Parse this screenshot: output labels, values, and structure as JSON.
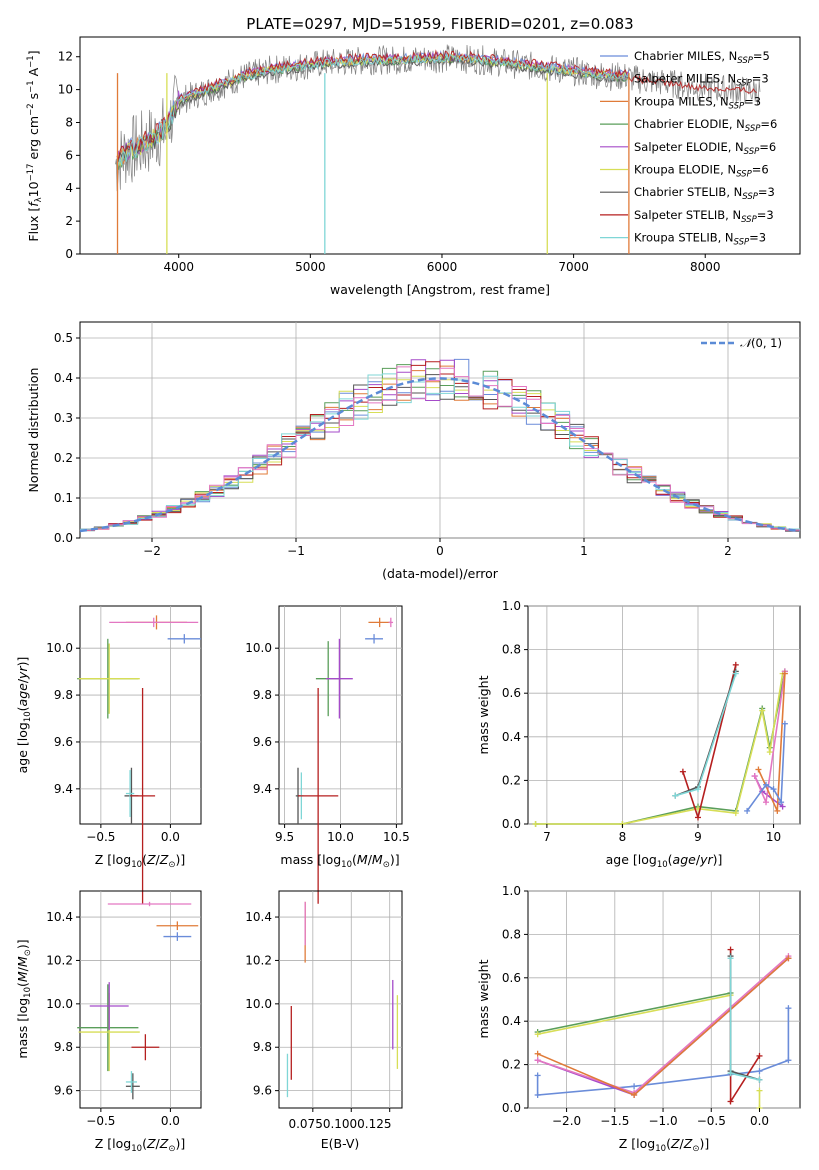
{
  "chart_data": [
    {
      "id": "spectrum",
      "type": "line",
      "title": "PLATE=0297, MJD=51959, FIBERID=0201, z=0.083",
      "xlabel": "wavelength [Angstrom, rest frame]",
      "ylabel": "Flux [f_λ 10^-17 erg cm^-2 s^-1 A^-1]",
      "xlim": [
        3250,
        8720
      ],
      "ylim": [
        0,
        13.2
      ],
      "xticks": [
        4000,
        5000,
        6000,
        7000,
        8000
      ],
      "yticks": [
        0,
        2,
        4,
        6,
        8,
        10,
        12
      ],
      "legend_position": "right",
      "series": [
        {
          "name": "Chabrier MILES, N_SSP=5",
          "color": "#6a8cd9"
        },
        {
          "name": "Salpeter MILES, N_SSP=3",
          "color": "#9a9a9a"
        },
        {
          "name": "Kroupa MILES, N_SSP=3",
          "color": "#e07b39"
        },
        {
          "name": "Chabrier ELODIE, N_SSP=6",
          "color": "#5a9e5a"
        },
        {
          "name": "Salpeter ELODIE, N_SSP=6",
          "color": "#a54bc9"
        },
        {
          "name": "Kroupa ELODIE, N_SSP=6",
          "color": "#d7de57"
        },
        {
          "name": "Chabrier STELIB, N_SSP=3",
          "color": "#555555"
        },
        {
          "name": "Salpeter STELIB, N_SSP=3",
          "color": "#b51f1f"
        },
        {
          "name": "Kroupa STELIB, N_SSP=3",
          "color": "#7fd6d6"
        }
      ],
      "curve_points": {
        "x": [
          3530,
          3600,
          3700,
          3800,
          3900,
          4000,
          4100,
          4200,
          4300,
          4400,
          4500,
          4700,
          4900,
          5100,
          5300,
          5500,
          5700,
          5900,
          6100,
          6300,
          6500,
          6700,
          6900,
          7100,
          7300,
          7420
        ],
        "y": [
          5.5,
          6.2,
          6.5,
          7.0,
          7.6,
          9.3,
          9.6,
          9.9,
          10.2,
          10.5,
          10.8,
          11.2,
          11.4,
          11.6,
          11.7,
          11.8,
          11.8,
          11.9,
          11.9,
          11.8,
          11.6,
          11.4,
          11.2,
          11.0,
          10.8,
          10.8
        ]
      },
      "red_tail": {
        "x": [
          7420,
          7600,
          7800,
          8000,
          8200,
          8400
        ],
        "y": [
          10.7,
          10.5,
          10.3,
          10.1,
          10.0,
          9.9
        ]
      }
    },
    {
      "id": "residuals",
      "type": "line",
      "xlabel": "(data-model)/error",
      "ylabel": "Normed distribution",
      "xlim": [
        -2.5,
        2.5
      ],
      "ylim": [
        0,
        0.54
      ],
      "xticks": [
        -2,
        -1,
        0,
        1,
        2
      ],
      "xtick_labels": [
        "−2",
        "−1",
        "0",
        "1",
        "2"
      ],
      "yticks": [
        0,
        0.1,
        0.2,
        0.3,
        0.4,
        0.5
      ],
      "ytick_labels": [
        "0.0",
        "0.1",
        "0.2",
        "0.3",
        "0.4",
        "0.5"
      ],
      "legend": "N(0,1)",
      "legend_position": "top-right",
      "bin_width": 0.1
    },
    {
      "id": "age_vs_Z",
      "type": "scatter",
      "xlabel": "Z [log10(Z/Z⊙)]",
      "ylabel": "age [log10(age/yr)]",
      "xlim": [
        -0.65,
        0.22
      ],
      "ylim": [
        9.25,
        10.18
      ],
      "xticks": [
        -0.5,
        0.0
      ],
      "xtick_labels": [
        "−0.5",
        "0.0"
      ],
      "yticks": [
        9.4,
        9.6,
        9.8,
        10.0
      ],
      "ytick_labels": [
        "9.4",
        "9.6",
        "9.8",
        "10.0"
      ],
      "points": [
        {
          "x": -0.45,
          "y": 9.87,
          "xerr": 0.22,
          "yerr": 0.17,
          "color": "#5a9e5a"
        },
        {
          "x": -0.44,
          "y": 9.87,
          "xerr": 0.22,
          "yerr": 0.15,
          "color": "#d7de57"
        },
        {
          "x": -0.28,
          "y": 9.37,
          "xerr": 0.05,
          "yerr": 0.12,
          "color": "#555555"
        },
        {
          "x": -0.29,
          "y": 9.38,
          "xerr": 0.03,
          "yerr": 0.1,
          "color": "#7fd6d6"
        },
        {
          "x": -0.2,
          "y": 9.37,
          "xerr": 0.09,
          "yerr": 0.46,
          "color": "#b51f1f"
        },
        {
          "x": -0.1,
          "y": 10.11,
          "xerr": 0.22,
          "yerr": 0.03,
          "color": "#e07b39"
        },
        {
          "x": -0.12,
          "y": 10.11,
          "xerr": 0.32,
          "yerr": 0.02,
          "color": "#e377c2"
        },
        {
          "x": 0.1,
          "y": 10.04,
          "xerr": 0.12,
          "yerr": 0.02,
          "color": "#6a8cd9"
        }
      ]
    },
    {
      "id": "age_vs_mass",
      "type": "scatter",
      "xlabel": "mass [log10(M/M⊙)]",
      "ylabel": "",
      "xlim": [
        9.45,
        10.55
      ],
      "ylim": [
        9.25,
        10.18
      ],
      "xticks": [
        9.5,
        10.0,
        10.5
      ],
      "xtick_labels": [
        "9.5",
        "10.0",
        "10.5"
      ],
      "yticks": [
        9.4,
        9.6,
        9.8,
        10.0
      ],
      "ytick_labels": [
        "9.4",
        "9.6",
        "9.8",
        "10.0"
      ],
      "points": [
        {
          "x": 9.62,
          "y": 9.37,
          "xerr": 0.02,
          "yerr": 0.12,
          "color": "#555555"
        },
        {
          "x": 9.65,
          "y": 9.37,
          "xerr": 0.02,
          "yerr": 0.1,
          "color": "#7fd6d6"
        },
        {
          "x": 9.8,
          "y": 9.37,
          "xerr": 0.18,
          "yerr": 0.46,
          "color": "#b51f1f"
        },
        {
          "x": 9.89,
          "y": 9.87,
          "xerr": 0.11,
          "yerr": 0.16,
          "color": "#5a9e5a"
        },
        {
          "x": 9.99,
          "y": 9.87,
          "xerr": 0.12,
          "yerr": 0.17,
          "color": "#a54bc9"
        },
        {
          "x": 10.35,
          "y": 10.11,
          "xerr": 0.1,
          "yerr": 0.02,
          "color": "#e07b39"
        },
        {
          "x": 10.3,
          "y": 10.04,
          "xerr": 0.08,
          "yerr": 0.02,
          "color": "#6a8cd9"
        },
        {
          "x": 10.45,
          "y": 10.11,
          "xerr": 0.02,
          "yerr": 0.02,
          "color": "#e377c2"
        }
      ]
    },
    {
      "id": "weight_vs_age",
      "type": "line",
      "xlabel": "age [log10(age/yr)]",
      "ylabel": "mass weight",
      "xlim": [
        6.75,
        10.35
      ],
      "ylim": [
        0,
        1.0
      ],
      "xticks": [
        7,
        8,
        9,
        10
      ],
      "xtick_labels": [
        "7",
        "8",
        "9",
        "10"
      ],
      "yticks": [
        0,
        0.2,
        0.4,
        0.6,
        0.8,
        1.0
      ],
      "ytick_labels": [
        "0.0",
        "0.2",
        "0.4",
        "0.6",
        "0.8",
        "1.0"
      ]
    },
    {
      "id": "mass_vs_Z",
      "type": "scatter",
      "xlabel": "Z [log10(Z/Z⊙)]",
      "ylabel": "mass [log10(M/M⊙)]",
      "xlim": [
        -0.65,
        0.22
      ],
      "ylim": [
        9.52,
        10.52
      ],
      "xticks": [
        -0.5,
        0.0
      ],
      "xtick_labels": [
        "−0.5",
        "0.0"
      ],
      "yticks": [
        9.6,
        9.8,
        10.0,
        10.2,
        10.4
      ],
      "ytick_labels": [
        "9.6",
        "9.8",
        "10.0",
        "10.2",
        "10.4"
      ],
      "points": [
        {
          "x": -0.45,
          "y": 9.89,
          "xerr": 0.22,
          "yerr": 0.2,
          "color": "#5a9e5a"
        },
        {
          "x": -0.44,
          "y": 9.87,
          "xerr": 0.22,
          "yerr": 0.18,
          "color": "#d7de57"
        },
        {
          "x": -0.44,
          "y": 9.99,
          "xerr": 0.14,
          "yerr": 0.11,
          "color": "#a54bc9"
        },
        {
          "x": -0.27,
          "y": 9.62,
          "xerr": 0.05,
          "yerr": 0.06,
          "color": "#555555"
        },
        {
          "x": -0.28,
          "y": 9.64,
          "xerr": 0.04,
          "yerr": 0.05,
          "color": "#7fd6d6"
        },
        {
          "x": -0.18,
          "y": 9.8,
          "xerr": 0.1,
          "yerr": 0.06,
          "color": "#b51f1f"
        },
        {
          "x": -0.15,
          "y": 10.46,
          "xerr": 0.3,
          "yerr": 0.01,
          "color": "#e377c2"
        },
        {
          "x": 0.05,
          "y": 10.36,
          "xerr": 0.15,
          "yerr": 0.02,
          "color": "#e07b39"
        },
        {
          "x": 0.05,
          "y": 10.31,
          "xerr": 0.1,
          "yerr": 0.02,
          "color": "#6a8cd9"
        }
      ]
    },
    {
      "id": "mass_vs_ebv",
      "type": "scatter",
      "xlabel": "E(B-V)",
      "ylabel": "",
      "xlim": [
        0.053,
        0.133
      ],
      "ylim": [
        9.52,
        10.52
      ],
      "xticks": [
        0.075,
        0.1,
        0.125
      ],
      "xtick_labels": [
        "0.075",
        "0.100",
        "0.125"
      ],
      "xtick_text": "0.0750.1000.125",
      "yticks": [
        9.6,
        9.8,
        10.0,
        10.2,
        10.4
      ],
      "ytick_labels": [
        "9.6",
        "9.8",
        "10.0",
        "10.2",
        "10.4"
      ],
      "points": [
        {
          "x": 0.0585,
          "y": 9.67,
          "yerr": 0.1,
          "color": "#7fd6d6"
        },
        {
          "x": 0.061,
          "y": 9.82,
          "yerr": 0.17,
          "color": "#b51f1f"
        },
        {
          "x": 0.07,
          "y": 10.33,
          "yerr": 0.14,
          "color": "#e07b39"
        },
        {
          "x": 0.07,
          "y": 10.37,
          "yerr": 0.1,
          "color": "#e377c2"
        },
        {
          "x": 0.127,
          "y": 9.95,
          "yerr": 0.16,
          "color": "#a54bc9"
        },
        {
          "x": 0.13,
          "y": 9.87,
          "yerr": 0.17,
          "color": "#d7de57"
        }
      ]
    },
    {
      "id": "weight_vs_Z",
      "type": "line",
      "xlabel": "Z [log10(Z/Z⊙)]",
      "ylabel": "mass weight",
      "xlim": [
        -2.4,
        0.42
      ],
      "ylim": [
        0,
        1.0
      ],
      "xticks": [
        -2.0,
        -1.5,
        -1.0,
        -0.5,
        0.0
      ],
      "xtick_labels": [
        "−2.0",
        "−1.5",
        "−1.0",
        "−0.5",
        "0.0"
      ],
      "yticks": [
        0,
        0.2,
        0.4,
        0.6,
        0.8,
        1.0
      ],
      "ytick_labels": [
        "0.0",
        "0.2",
        "0.4",
        "0.6",
        "0.8",
        "1.0"
      ]
    }
  ]
}
